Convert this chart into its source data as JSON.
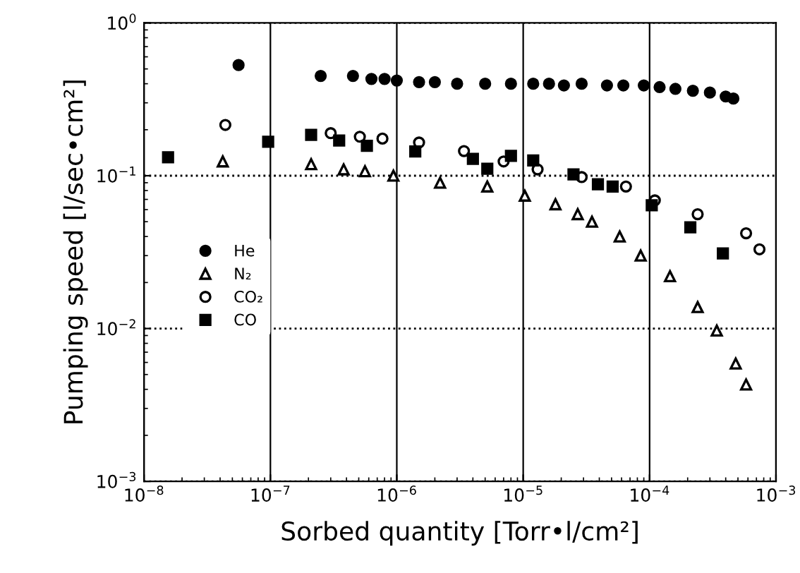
{
  "chart_data": {
    "type": "scatter",
    "xlabel": "Sorbed quantity [Torr•l/cm²]",
    "ylabel": "Pumping speed [l/sec•cm²]",
    "log": "xy",
    "grid": true,
    "legend": "left",
    "xlim": [
      1e-08,
      0.001
    ],
    "ylim": [
      0.001,
      1
    ],
    "xticks": [
      {
        "value": 1e-08,
        "label": "10$^{−8}$"
      },
      {
        "value": 1e-07,
        "label": "10$^{−7}$"
      },
      {
        "value": 1e-06,
        "label": "10$^{−6}$"
      },
      {
        "value": 1e-05,
        "label": "10$^{−5}$"
      },
      {
        "value": 0.0001,
        "label": "10$^{−4}$"
      },
      {
        "value": 0.001,
        "label": "10$^{−3}$"
      }
    ],
    "yticks": [
      {
        "value": 0.001,
        "label": "10$^{−3}$"
      },
      {
        "value": 0.01,
        "label": "10$^{−2}$"
      },
      {
        "value": 0.1,
        "label": "10$^{−1}$"
      },
      {
        "value": 1,
        "label": "10$^{0}$"
      }
    ],
    "series": [
      {
        "name": "He",
        "color": "#000000",
        "marker": "circle",
        "x": [
          5.6e-08,
          2.5e-07,
          4.5e-07,
          6.3e-07,
          8e-07,
          1e-06,
          1.5e-06,
          2e-06,
          3e-06,
          5e-06,
          8e-06,
          1.2e-05,
          1.6e-05,
          2.1e-05,
          2.9e-05,
          4.6e-05,
          6.2e-05,
          9e-05,
          0.00012,
          0.00016,
          0.00022,
          0.0003,
          0.0004,
          0.00046
        ],
        "values": [
          0.53,
          0.45,
          0.45,
          0.43,
          0.43,
          0.42,
          0.41,
          0.41,
          0.4,
          0.4,
          0.4,
          0.4,
          0.4,
          0.39,
          0.4,
          0.39,
          0.39,
          0.39,
          0.38,
          0.37,
          0.36,
          0.35,
          0.33,
          0.32
        ]
      },
      {
        "name": "N₂",
        "color": "#000000",
        "marker": "triangle",
        "x": [
          4.2e-08,
          2.1e-07,
          3.8e-07,
          5.6e-07,
          9.4e-07,
          2.2e-06,
          5.2e-06,
          1.03e-05,
          1.8e-05,
          2.7e-05,
          3.5e-05,
          5.8e-05,
          8.5e-05,
          0.000145,
          0.00024,
          0.00034,
          0.00048,
          0.00058
        ],
        "values": [
          0.124,
          0.119,
          0.11,
          0.107,
          0.1,
          0.09,
          0.085,
          0.074,
          0.065,
          0.056,
          0.05,
          0.04,
          0.03,
          0.022,
          0.0138,
          0.0097,
          0.0059,
          0.0043
        ]
      },
      {
        "name": "CO₂",
        "color": "#000000",
        "marker": "circle",
        "x": [
          4.4e-08,
          3e-07,
          5.1e-07,
          7.7e-07,
          1.5e-06,
          3.4e-06,
          7e-06,
          1.3e-05,
          2.9e-05,
          6.5e-05,
          0.00011,
          0.00024,
          0.00058,
          0.00074
        ],
        "values": [
          0.215,
          0.19,
          0.18,
          0.175,
          0.165,
          0.145,
          0.124,
          0.11,
          0.098,
          0.085,
          0.069,
          0.056,
          0.042,
          0.033
        ]
      },
      {
        "name": "CO",
        "color": "#000000",
        "marker": "square",
        "x": [
          1.55e-08,
          9.6e-08,
          2.1e-07,
          3.5e-07,
          5.8e-07,
          1.4e-06,
          4e-06,
          5.2e-06,
          8e-06,
          1.2e-05,
          2.5e-05,
          3.9e-05,
          5.1e-05,
          0.000104,
          0.00021,
          0.00038
        ],
        "values": [
          0.132,
          0.167,
          0.185,
          0.17,
          0.157,
          0.144,
          0.129,
          0.111,
          0.135,
          0.126,
          0.102,
          0.088,
          0.085,
          0.064,
          0.046,
          0.031
        ]
      }
    ]
  }
}
